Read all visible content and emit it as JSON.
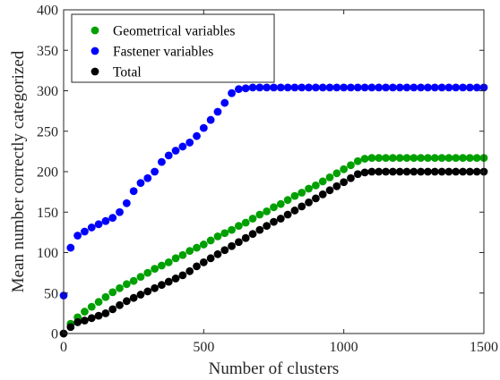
{
  "chart_data": {
    "type": "scatter",
    "title": "",
    "xlabel": "Number of clusters",
    "ylabel": "Mean number correctly categorized",
    "xlim": [
      0,
      1500
    ],
    "ylim": [
      0,
      400
    ],
    "xticks": [
      0,
      500,
      1000,
      1500
    ],
    "yticks": [
      0,
      50,
      100,
      150,
      200,
      250,
      300,
      350,
      400
    ],
    "grid": false,
    "legend_position": "top-left",
    "x": [
      0,
      25,
      50,
      75,
      100,
      125,
      150,
      175,
      200,
      225,
      250,
      275,
      300,
      325,
      350,
      375,
      400,
      425,
      450,
      475,
      500,
      525,
      550,
      575,
      600,
      625,
      650,
      675,
      700,
      725,
      750,
      775,
      800,
      825,
      850,
      875,
      900,
      925,
      950,
      975,
      1000,
      1025,
      1050,
      1075,
      1100,
      1125,
      1150,
      1175,
      1200,
      1225,
      1250,
      1275,
      1300,
      1325,
      1350,
      1375,
      1400,
      1425,
      1450,
      1475,
      1500
    ],
    "series": [
      {
        "name": "Geometrical variables",
        "color": "#00a000",
        "values": [
          0,
          12,
          20,
          27,
          33,
          39,
          45,
          51,
          56,
          61,
          65,
          70,
          75,
          80,
          84,
          88,
          93,
          97,
          102,
          106,
          110,
          115,
          120,
          124,
          128,
          133,
          137,
          142,
          147,
          151,
          156,
          160,
          165,
          170,
          174,
          179,
          183,
          188,
          193,
          198,
          203,
          208,
          213,
          216,
          217,
          217,
          217,
          217,
          217,
          217,
          217,
          217,
          217,
          217,
          217,
          217,
          217,
          217,
          217,
          217,
          217
        ]
      },
      {
        "name": "Fastener variables",
        "color": "#0000ff",
        "values": [
          47,
          106,
          121,
          126,
          131,
          135,
          139,
          143,
          150,
          161,
          176,
          186,
          192,
          200,
          212,
          220,
          226,
          231,
          236,
          244,
          254,
          264,
          274,
          285,
          297,
          302,
          303,
          304,
          304,
          304,
          304,
          304,
          304,
          304,
          304,
          304,
          304,
          304,
          304,
          304,
          304,
          304,
          304,
          304,
          304,
          304,
          304,
          304,
          304,
          304,
          304,
          304,
          304,
          304,
          304,
          304,
          304,
          304,
          304,
          304,
          304
        ]
      },
      {
        "name": "Total",
        "color": "#000000",
        "values": [
          0,
          8,
          14,
          16,
          19,
          22,
          25,
          30,
          35,
          40,
          44,
          48,
          52,
          56,
          60,
          64,
          68,
          72,
          77,
          83,
          88,
          93,
          98,
          103,
          108,
          113,
          118,
          123,
          128,
          133,
          138,
          142,
          147,
          152,
          157,
          162,
          167,
          172,
          177,
          182,
          187,
          192,
          197,
          199,
          200,
          200,
          200,
          200,
          200,
          200,
          200,
          200,
          200,
          200,
          200,
          200,
          200,
          200,
          200,
          200,
          200
        ]
      }
    ]
  }
}
